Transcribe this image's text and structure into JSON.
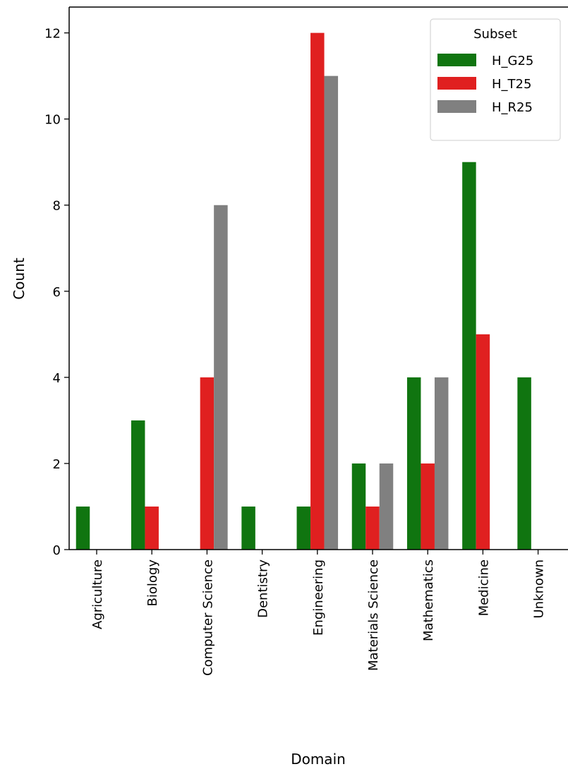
{
  "chart_data": {
    "type": "bar",
    "categories": [
      "Agriculture",
      "Biology",
      "Computer Science",
      "Dentistry",
      "Engineering",
      "Materials Science",
      "Mathematics",
      "Medicine",
      "Unknown"
    ],
    "series": [
      {
        "name": "H_G25",
        "color": "#107510",
        "values": [
          1,
          3,
          0,
          1,
          1,
          2,
          4,
          9,
          4
        ]
      },
      {
        "name": "H_T25",
        "color": "#e02020",
        "values": [
          0,
          1,
          4,
          0,
          12,
          1,
          2,
          5,
          0
        ]
      },
      {
        "name": "H_R25",
        "color": "#808080",
        "values": [
          0,
          0,
          8,
          0,
          11,
          2,
          4,
          0,
          0
        ]
      }
    ],
    "xlabel": "Domain",
    "ylabel": "Count",
    "ylim": [
      0,
      12.6
    ],
    "yticks": [
      "0",
      "2",
      "4",
      "6",
      "8",
      "10",
      "12"
    ],
    "legend": {
      "title": "Subset",
      "placement": "top-right"
    },
    "grid": false
  }
}
